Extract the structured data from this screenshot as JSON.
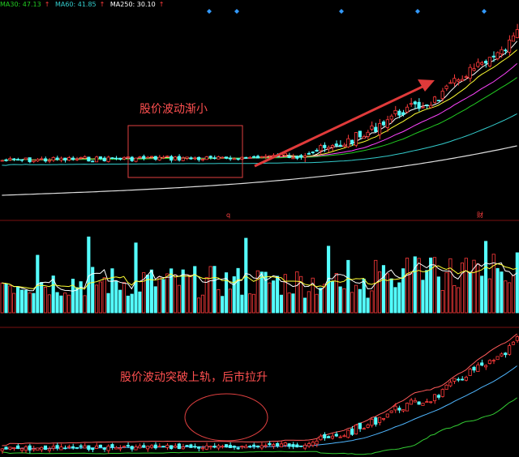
{
  "legend": {
    "ma30": "MA30: 47.13",
    "ma60": "MA60: 41.85",
    "ma250": "MA250: 30.10",
    "arrow": "↑",
    "colors": {
      "ma30": "#22cc22",
      "ma60": "#33cccc",
      "ma250": "#ffffff"
    }
  },
  "annotations": {
    "consolidation": "股价波动渐小",
    "breakout": "股价波动突破上轨，后市拉升"
  },
  "markers": {
    "q": "q",
    "cai": "财"
  },
  "chart_data": [
    {
      "type": "candlestick",
      "panel": "price",
      "series": [
        {
          "name": "MA30",
          "color": "#22cc22"
        },
        {
          "name": "MA60",
          "color": "#33cccc"
        },
        {
          "name": "MA250",
          "color": "#ffffff"
        }
      ],
      "last_values": {
        "MA30": 47.13,
        "MA60": 41.85,
        "MA250": 30.1
      },
      "annotation": "股价波动渐小",
      "trend_arrow": "up"
    },
    {
      "type": "bar",
      "panel": "volume",
      "up_color": "#ff3b3b",
      "down_color": "#54ffff"
    },
    {
      "type": "candlestick",
      "panel": "bollinger",
      "bands": [
        "upper",
        "middle",
        "lower"
      ],
      "annotation": "股价波动突破上轨，后市拉升"
    }
  ]
}
